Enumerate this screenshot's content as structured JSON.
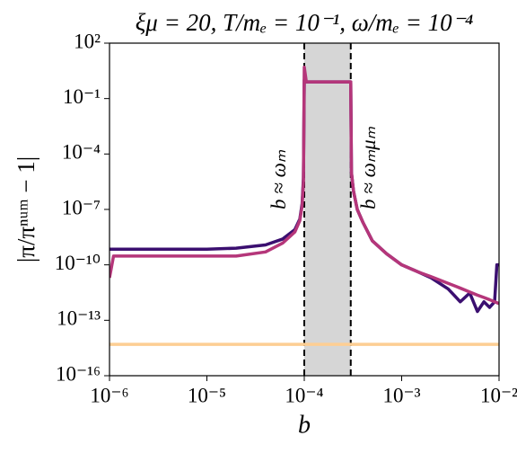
{
  "chart_data": {
    "type": "line",
    "title": "ξμ = 20, T/mₑ = 10⁻¹, ω/mₑ = 10⁻⁴",
    "x_label": "b",
    "y_label": "|π/πⁿᵘᵐ − 1|",
    "log_x": true,
    "log_y": true,
    "xlim": [
      1e-06,
      0.01
    ],
    "ylim": [
      1e-16,
      100
    ],
    "xticks": [
      {
        "value": 1e-06,
        "label": "10⁻⁶"
      },
      {
        "value": 1e-05,
        "label": "10⁻⁵"
      },
      {
        "value": 0.0001,
        "label": "10⁻⁴"
      },
      {
        "value": 0.001,
        "label": "10⁻³"
      },
      {
        "value": 0.01,
        "label": "10⁻²"
      }
    ],
    "yticks": [
      {
        "value": 1e-16,
        "label": "10⁻¹⁶"
      },
      {
        "value": 1e-13,
        "label": "10⁻¹³"
      },
      {
        "value": 1e-10,
        "label": "10⁻¹⁰"
      },
      {
        "value": 1e-07,
        "label": "10⁻⁷"
      },
      {
        "value": 0.0001,
        "label": "10⁻⁴"
      },
      {
        "value": 0.1,
        "label": "10⁻¹"
      },
      {
        "value": 100,
        "label": "10²"
      }
    ],
    "shaded_region": [
      0.0001,
      0.0003
    ],
    "shade_color": "#d6d6d6",
    "vlines": [
      0.0001,
      0.0003
    ],
    "annotations": [
      {
        "text": "b ≈ ωₘ",
        "x": 5.75e-05,
        "y": 1e-07
      },
      {
        "text": "b ≈ ωₘμₘ",
        "x": 0.00048,
        "y": 1e-07
      }
    ],
    "x": [
      1e-06,
      1.1e-06,
      2e-06,
      5e-06,
      1e-05,
      2e-05,
      4e-05,
      6e-05,
      8e-05,
      9e-05,
      9.5e-05,
      9.8e-05,
      0.0001,
      0.000105,
      0.00012,
      0.0002,
      0.00029,
      0.0003,
      0.000305,
      0.00032,
      0.00035,
      0.0004,
      0.0005,
      0.0007,
      0.001,
      0.0015,
      0.002,
      0.003,
      0.004,
      0.005,
      0.006,
      0.007,
      0.008,
      0.009,
      0.0095,
      0.01
    ],
    "series": [
      {
        "color": "#fdce93",
        "x": [
          1e-06,
          0.01
        ],
        "values": [
          5e-15,
          5e-15
        ]
      },
      {
        "color": "#3b0f70",
        "values": [
          7e-10,
          7e-10,
          7e-10,
          7e-10,
          7e-10,
          8e-10,
          1.2e-09,
          2.5e-09,
          8e-09,
          3e-08,
          2e-07,
          5e-06,
          1,
          0.8,
          0.8,
          0.8,
          0.8,
          0.8,
          1e-05,
          1e-06,
          1e-07,
          2e-08,
          2e-09,
          4e-10,
          1e-10,
          4e-11,
          2e-11,
          5e-12,
          1e-12,
          3e-12,
          3e-13,
          1e-12,
          5e-13,
          1e-12,
          1e-10,
          1e-10
        ]
      },
      {
        "color": "#b5367a",
        "values": [
          2e-11,
          3e-10,
          3e-10,
          3e-10,
          3e-10,
          3e-10,
          5e-10,
          1.5e-09,
          6e-09,
          2.5e-08,
          1.5e-07,
          3e-06,
          5,
          0.8,
          0.8,
          0.8,
          0.8,
          0.8,
          1e-05,
          1e-06,
          1e-07,
          2e-08,
          2e-09,
          4e-10,
          1e-10,
          4e-11,
          2.3e-11,
          1e-11,
          5.5e-12,
          3.4e-12,
          2.3e-12,
          1.7e-12,
          1.3e-12,
          1e-12,
          9e-13,
          8e-13
        ]
      }
    ]
  }
}
